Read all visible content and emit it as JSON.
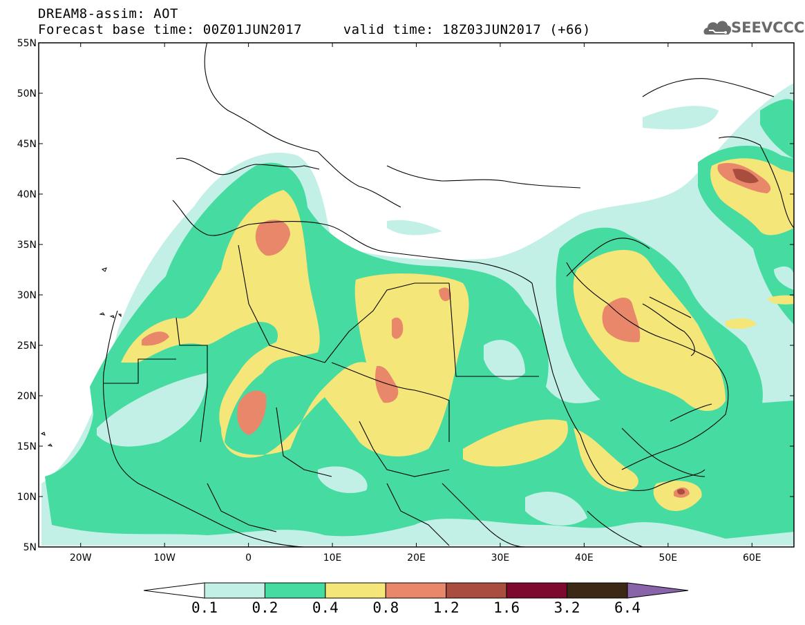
{
  "title": {
    "line1": "DREAM8-assim: AOT",
    "line2": "Forecast base time: 00Z01JUN2017     valid time: 18Z03JUN2017 (+66)"
  },
  "logo": {
    "text": "SEEVCCC",
    "icon": "cloud-icon"
  },
  "map": {
    "lon_range": [
      -25,
      65
    ],
    "lat_range": [
      5,
      55
    ],
    "lon_ticks": [
      {
        "value": -20,
        "label": "20W"
      },
      {
        "value": -10,
        "label": "10W"
      },
      {
        "value": 0,
        "label": "0"
      },
      {
        "value": 10,
        "label": "10E"
      },
      {
        "value": 20,
        "label": "20E"
      },
      {
        "value": 30,
        "label": "30E"
      },
      {
        "value": 40,
        "label": "40E"
      },
      {
        "value": 50,
        "label": "50E"
      },
      {
        "value": 60,
        "label": "60E"
      }
    ],
    "lat_ticks": [
      {
        "value": 5,
        "label": "5N"
      },
      {
        "value": 10,
        "label": "10N"
      },
      {
        "value": 15,
        "label": "15N"
      },
      {
        "value": 20,
        "label": "20N"
      },
      {
        "value": 25,
        "label": "25N"
      },
      {
        "value": 30,
        "label": "30N"
      },
      {
        "value": 35,
        "label": "35N"
      },
      {
        "value": 40,
        "label": "40N"
      },
      {
        "value": 45,
        "label": "45N"
      },
      {
        "value": 50,
        "label": "50N"
      },
      {
        "value": 55,
        "label": "55N"
      }
    ]
  },
  "colorbar": {
    "levels": [
      "0.1",
      "0.2",
      "0.4",
      "0.8",
      "1.2",
      "1.6",
      "3.2",
      "6.4"
    ],
    "colors": [
      "#ffffff",
      "#c3f0e6",
      "#46dba0",
      "#f5e67a",
      "#e8876a",
      "#a94d3e",
      "#7d0a2e",
      "#3c2814",
      "#8a64aa"
    ]
  }
}
